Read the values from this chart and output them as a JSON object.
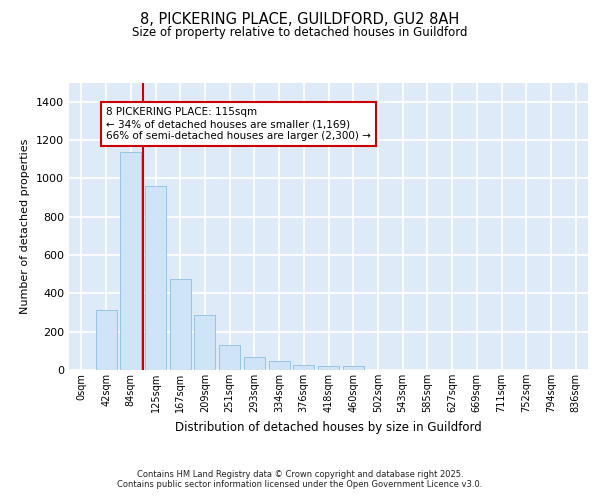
{
  "title_line1": "8, PICKERING PLACE, GUILDFORD, GU2 8AH",
  "title_line2": "Size of property relative to detached houses in Guildford",
  "xlabel": "Distribution of detached houses by size in Guildford",
  "ylabel": "Number of detached properties",
  "categories": [
    "0sqm",
    "42sqm",
    "84sqm",
    "125sqm",
    "167sqm",
    "209sqm",
    "251sqm",
    "293sqm",
    "334sqm",
    "376sqm",
    "418sqm",
    "460sqm",
    "502sqm",
    "543sqm",
    "585sqm",
    "627sqm",
    "669sqm",
    "711sqm",
    "752sqm",
    "794sqm",
    "836sqm"
  ],
  "values": [
    0,
    315,
    1135,
    960,
    475,
    285,
    130,
    70,
    45,
    25,
    20,
    20,
    0,
    0,
    0,
    0,
    0,
    0,
    0,
    0,
    0
  ],
  "bar_color": "#cfe5f7",
  "bar_edge_color": "#8bbfdf",
  "red_line_x": 2.5,
  "annotation_text": "8 PICKERING PLACE: 115sqm\n← 34% of detached houses are smaller (1,169)\n66% of semi-detached houses are larger (2,300) →",
  "annotation_box_facecolor": "#ffffff",
  "annotation_box_edgecolor": "#cc0000",
  "red_line_color": "#cc0000",
  "ylim": [
    0,
    1500
  ],
  "yticks": [
    0,
    200,
    400,
    600,
    800,
    1000,
    1200,
    1400
  ],
  "background_color": "#deeaf7",
  "grid_color": "#ffffff",
  "footer_line1": "Contains HM Land Registry data © Crown copyright and database right 2025.",
  "footer_line2": "Contains public sector information licensed under the Open Government Licence v3.0."
}
